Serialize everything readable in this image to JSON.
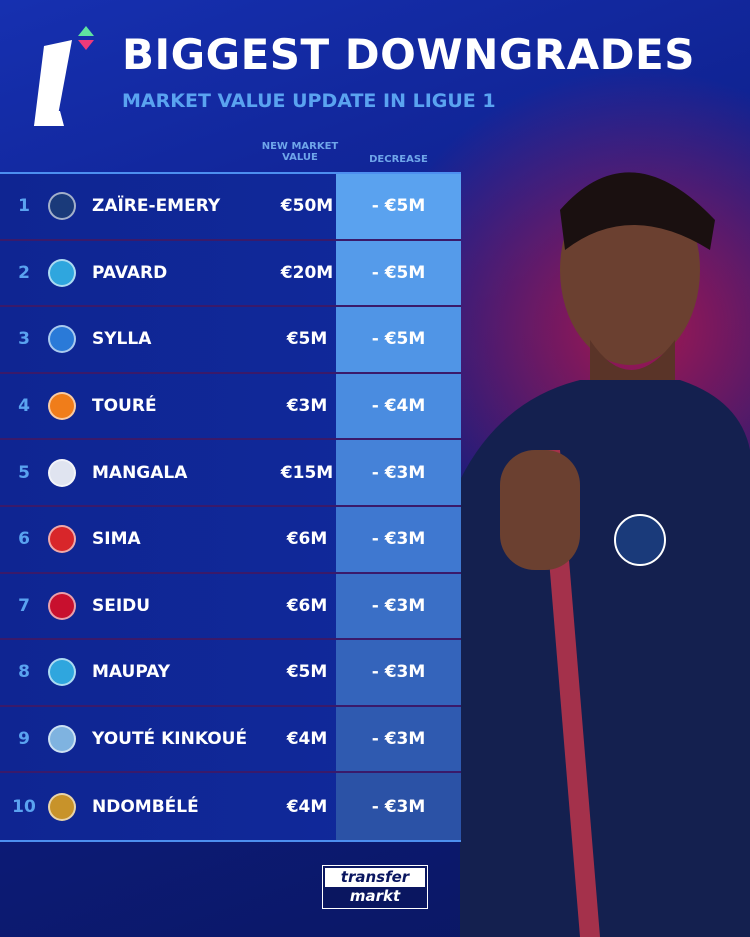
{
  "header": {
    "title": "BIGGEST DOWNGRADES",
    "subtitle": "MARKET VALUE UPDATE IN LIGUE 1",
    "logo_text": "L1"
  },
  "columns": {
    "value": "NEW MARKET VALUE",
    "decrease": "DECREASE"
  },
  "rows": [
    {
      "rank": "1",
      "club_icon": "psg-crest-icon",
      "club_color": "#1a3a7a",
      "name": "ZAÏRE-EMERY",
      "value": "€50M",
      "decrease": "- €5M",
      "decrease_color": "#5aa2ef"
    },
    {
      "rank": "2",
      "club_icon": "marseille-crest-icon",
      "club_color": "#2fa6de",
      "name": "PAVARD",
      "value": "€20M",
      "decrease": "- €5M",
      "decrease_color": "#559bea"
    },
    {
      "rank": "3",
      "club_icon": "strasbourg-crest-icon",
      "club_color": "#2a7ad8",
      "name": "SYLLA",
      "value": "€5M",
      "decrease": "- €5M",
      "decrease_color": "#5095e6"
    },
    {
      "rank": "4",
      "club_icon": "lorient-crest-icon",
      "club_color": "#f07d1a",
      "name": "TOURÉ",
      "value": "€3M",
      "decrease": "- €4M",
      "decrease_color": "#4a8ce0"
    },
    {
      "rank": "5",
      "club_icon": "lyon-crest-icon",
      "club_color": "#e0e4f0",
      "name": "MANGALA",
      "value": "€15M",
      "decrease": "- €3M",
      "decrease_color": "#4582d8"
    },
    {
      "rank": "6",
      "club_icon": "lens-crest-icon",
      "club_color": "#d8262a",
      "name": "SIMA",
      "value": "€6M",
      "decrease": "- €3M",
      "decrease_color": "#3f78d0"
    },
    {
      "rank": "7",
      "club_icon": "rennes-crest-icon",
      "club_color": "#c8102e",
      "name": "SEIDU",
      "value": "€6M",
      "decrease": "- €3M",
      "decrease_color": "#3a6fc6"
    },
    {
      "rank": "8",
      "club_icon": "marseille-crest-icon",
      "club_color": "#2fa6de",
      "name": "MAUPAY",
      "value": "€5M",
      "decrease": "- €3M",
      "decrease_color": "#3464bb"
    },
    {
      "rank": "9",
      "club_icon": "le-havre-crest-icon",
      "club_color": "#7fb3e0",
      "name": "YOUTÉ KINKOUÉ",
      "value": "€4M",
      "decrease": "- €3M",
      "decrease_color": "#2f5ab0"
    },
    {
      "rank": "10",
      "club_icon": "nice-crest-icon",
      "club_color": "#c8932a",
      "name": "NDOMBÉLÉ",
      "value": "€4M",
      "decrease": "- €3M",
      "decrease_color": "#2b52a6"
    }
  ],
  "footer": {
    "brand_line1": "transfer",
    "brand_line2": "markt"
  }
}
